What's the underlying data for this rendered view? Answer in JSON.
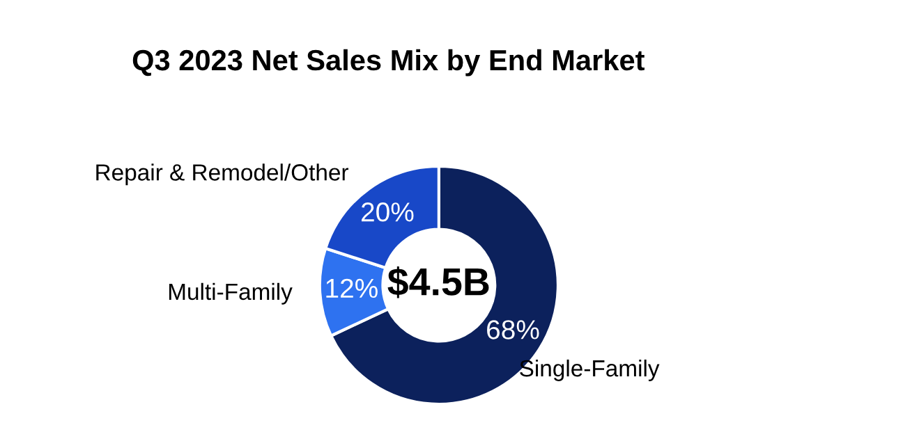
{
  "chart_data": {
    "type": "donut",
    "title": "Q3 2023 Net Sales Mix by End Market",
    "categories": [
      "Single-Family",
      "Multi-Family",
      "Repair & Remodel/Other"
    ],
    "values": [
      68,
      12,
      20
    ],
    "colors": [
      "#0c215c",
      "#2e72f0",
      "#1848c8"
    ],
    "value_labels": [
      "68%",
      "12%",
      "20%"
    ],
    "annotations": [
      "$4.5B"
    ]
  }
}
